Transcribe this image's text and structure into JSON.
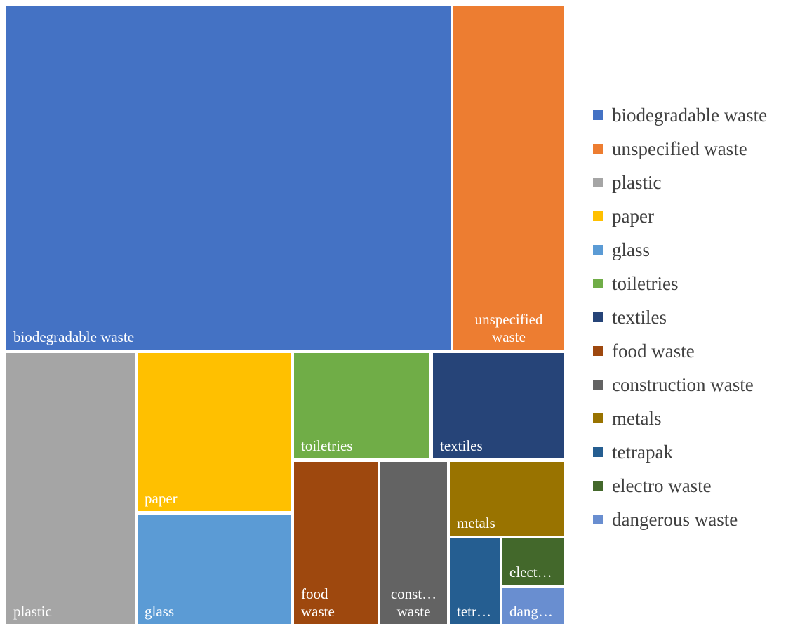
{
  "chart_data": {
    "type": "treemap",
    "title": "",
    "legend_position": "right",
    "items": [
      {
        "name": "biodegradable waste",
        "label_lines": [
          "biodegradable waste"
        ],
        "value": 308,
        "color": "#4472C4"
      },
      {
        "name": "unspecified waste",
        "label_lines": [
          "unspecified",
          "waste"
        ],
        "value": 78,
        "color": "#ED7D31"
      },
      {
        "name": "plastic",
        "label_lines": [
          "plastic"
        ],
        "value": 71,
        "color": "#A5A5A5"
      },
      {
        "name": "paper",
        "label_lines": [
          "paper"
        ],
        "value": 49,
        "color": "#FFC000"
      },
      {
        "name": "glass",
        "label_lines": [
          "glass"
        ],
        "value": 35,
        "color": "#5B9BD5"
      },
      {
        "name": "toiletries",
        "label_lines": [
          "toiletries"
        ],
        "value": 29,
        "color": "#70AD47"
      },
      {
        "name": "textiles",
        "label_lines": [
          "textiles"
        ],
        "value": 28,
        "color": "#264478"
      },
      {
        "name": "food waste",
        "label_lines": [
          "food",
          "waste"
        ],
        "value": 27,
        "color": "#9E480E"
      },
      {
        "name": "construction waste",
        "label_lines": [
          "const…",
          "waste"
        ],
        "value": 22,
        "color": "#636363"
      },
      {
        "name": "metals",
        "label_lines": [
          "metals"
        ],
        "value": 17,
        "color": "#997300"
      },
      {
        "name": "tetrapak",
        "label_lines": [
          "tetr…"
        ],
        "value": 11,
        "color": "#255E91"
      },
      {
        "name": "electro waste",
        "label_lines": [
          "elect…"
        ],
        "value": 5,
        "color": "#43682B"
      },
      {
        "name": "dangerous waste",
        "label_lines": [
          "dang…"
        ],
        "value": 4,
        "color": "#698ED0"
      }
    ]
  }
}
